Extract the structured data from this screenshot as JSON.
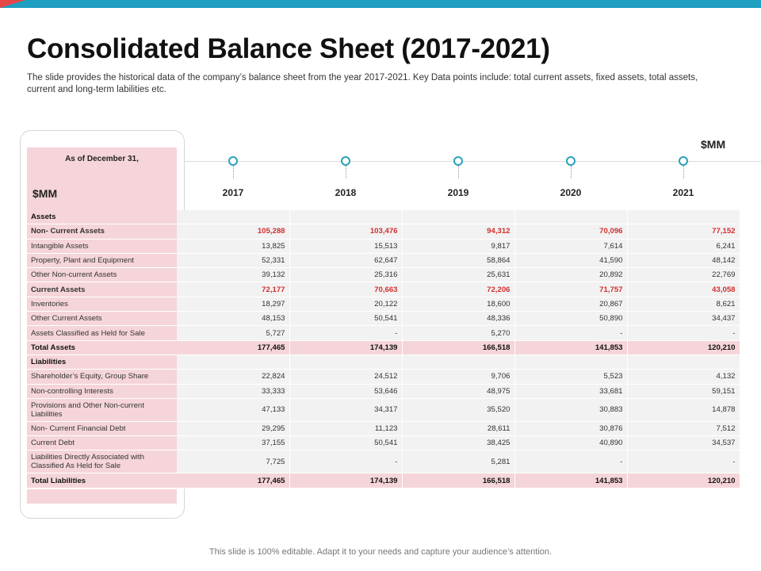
{
  "title": "Consolidated Balance Sheet (2017-2021)",
  "description": "The slide provides  the historical data of the company’s balance sheet from the year 2017-2021.  Key Data points include: total current assets, fixed assets, total assets, current and long-term labilities etc.",
  "unit_top": "$MM",
  "header": {
    "as_of": "As of December 31,",
    "unit": "$MM"
  },
  "years": [
    "2017",
    "2018",
    "2019",
    "2020",
    "2021"
  ],
  "rows": [
    {
      "label": "Assets",
      "kind": "sec",
      "values": [
        "",
        "",
        "",
        "",
        ""
      ]
    },
    {
      "label": "Non- Current Assets",
      "kind": "sub",
      "values": [
        "105,288",
        "103,476",
        "94,312",
        "70,096",
        "77,152"
      ]
    },
    {
      "label": "Intangible  Assets",
      "kind": "row",
      "values": [
        "13,825",
        "15,513",
        "9,817",
        "7,614",
        "6,241"
      ]
    },
    {
      "label": "Property, Plant  and Equipment",
      "kind": "row",
      "values": [
        "52,331",
        "62,647",
        "58,864",
        "41,590",
        "48,142"
      ]
    },
    {
      "label": "Other Non-current Assets",
      "kind": "row",
      "values": [
        "39,132",
        "25,316",
        "25,631",
        "20,892",
        "22,769"
      ]
    },
    {
      "label": "Current Assets",
      "kind": "sub",
      "values": [
        "72,177",
        "70,663",
        "72,206",
        "71,757",
        "43,058"
      ]
    },
    {
      "label": "Inventories",
      "kind": "row",
      "values": [
        "18,297",
        "20,122",
        "18,600",
        "20,867",
        "8,621"
      ]
    },
    {
      "label": "Other Current Assets",
      "kind": "row",
      "values": [
        "48,153",
        "50,541",
        "48,336",
        "50,890",
        "34,437"
      ]
    },
    {
      "label": "Assets Classified as Held for Sale",
      "kind": "row",
      "values": [
        "5,727",
        "-",
        "5,270",
        "-",
        "-"
      ]
    },
    {
      "label": "Total Assets",
      "kind": "tot",
      "values": [
        "177,465",
        "174,139",
        "166,518",
        "141,853",
        "120,210"
      ]
    },
    {
      "label": "Liabilities",
      "kind": "sec",
      "values": [
        "",
        "",
        "",
        "",
        ""
      ]
    },
    {
      "label": "Shareholder’s Equity,  Group Share",
      "kind": "row",
      "values": [
        "22,824",
        "24,512",
        "9,706",
        "5,523",
        "4,132"
      ]
    },
    {
      "label": "Non-controlling Interests",
      "kind": "row",
      "values": [
        "33,333",
        "53,646",
        "48,975",
        "33,681",
        "59,151"
      ]
    },
    {
      "label": "Provisions and Other Non-current Liabilities",
      "kind": "tall",
      "values": [
        "47,133",
        "34,317",
        "35,520",
        "30,883",
        "14,878"
      ]
    },
    {
      "label": "Non- Current Financial Debt",
      "kind": "row",
      "values": [
        "29,295",
        "11,123",
        "28,611",
        "30,876",
        "7,512"
      ]
    },
    {
      "label": "Current Debt",
      "kind": "row",
      "values": [
        "37,155",
        "50,541",
        "38,425",
        "40,890",
        "34,537"
      ]
    },
    {
      "label": "Liabilities Directly Associated with Classified As Held  for Sale",
      "kind": "tall",
      "values": [
        "7,725",
        "-",
        "5,281",
        "-",
        "-"
      ]
    },
    {
      "label": "Total Liabilities",
      "kind": "tot",
      "values": [
        "177,465",
        "174,139",
        "166,518",
        "141,853",
        "120,210"
      ]
    }
  ],
  "footer": "This slide is 100% editable. Adapt it to your needs and capture your audience’s attention."
}
